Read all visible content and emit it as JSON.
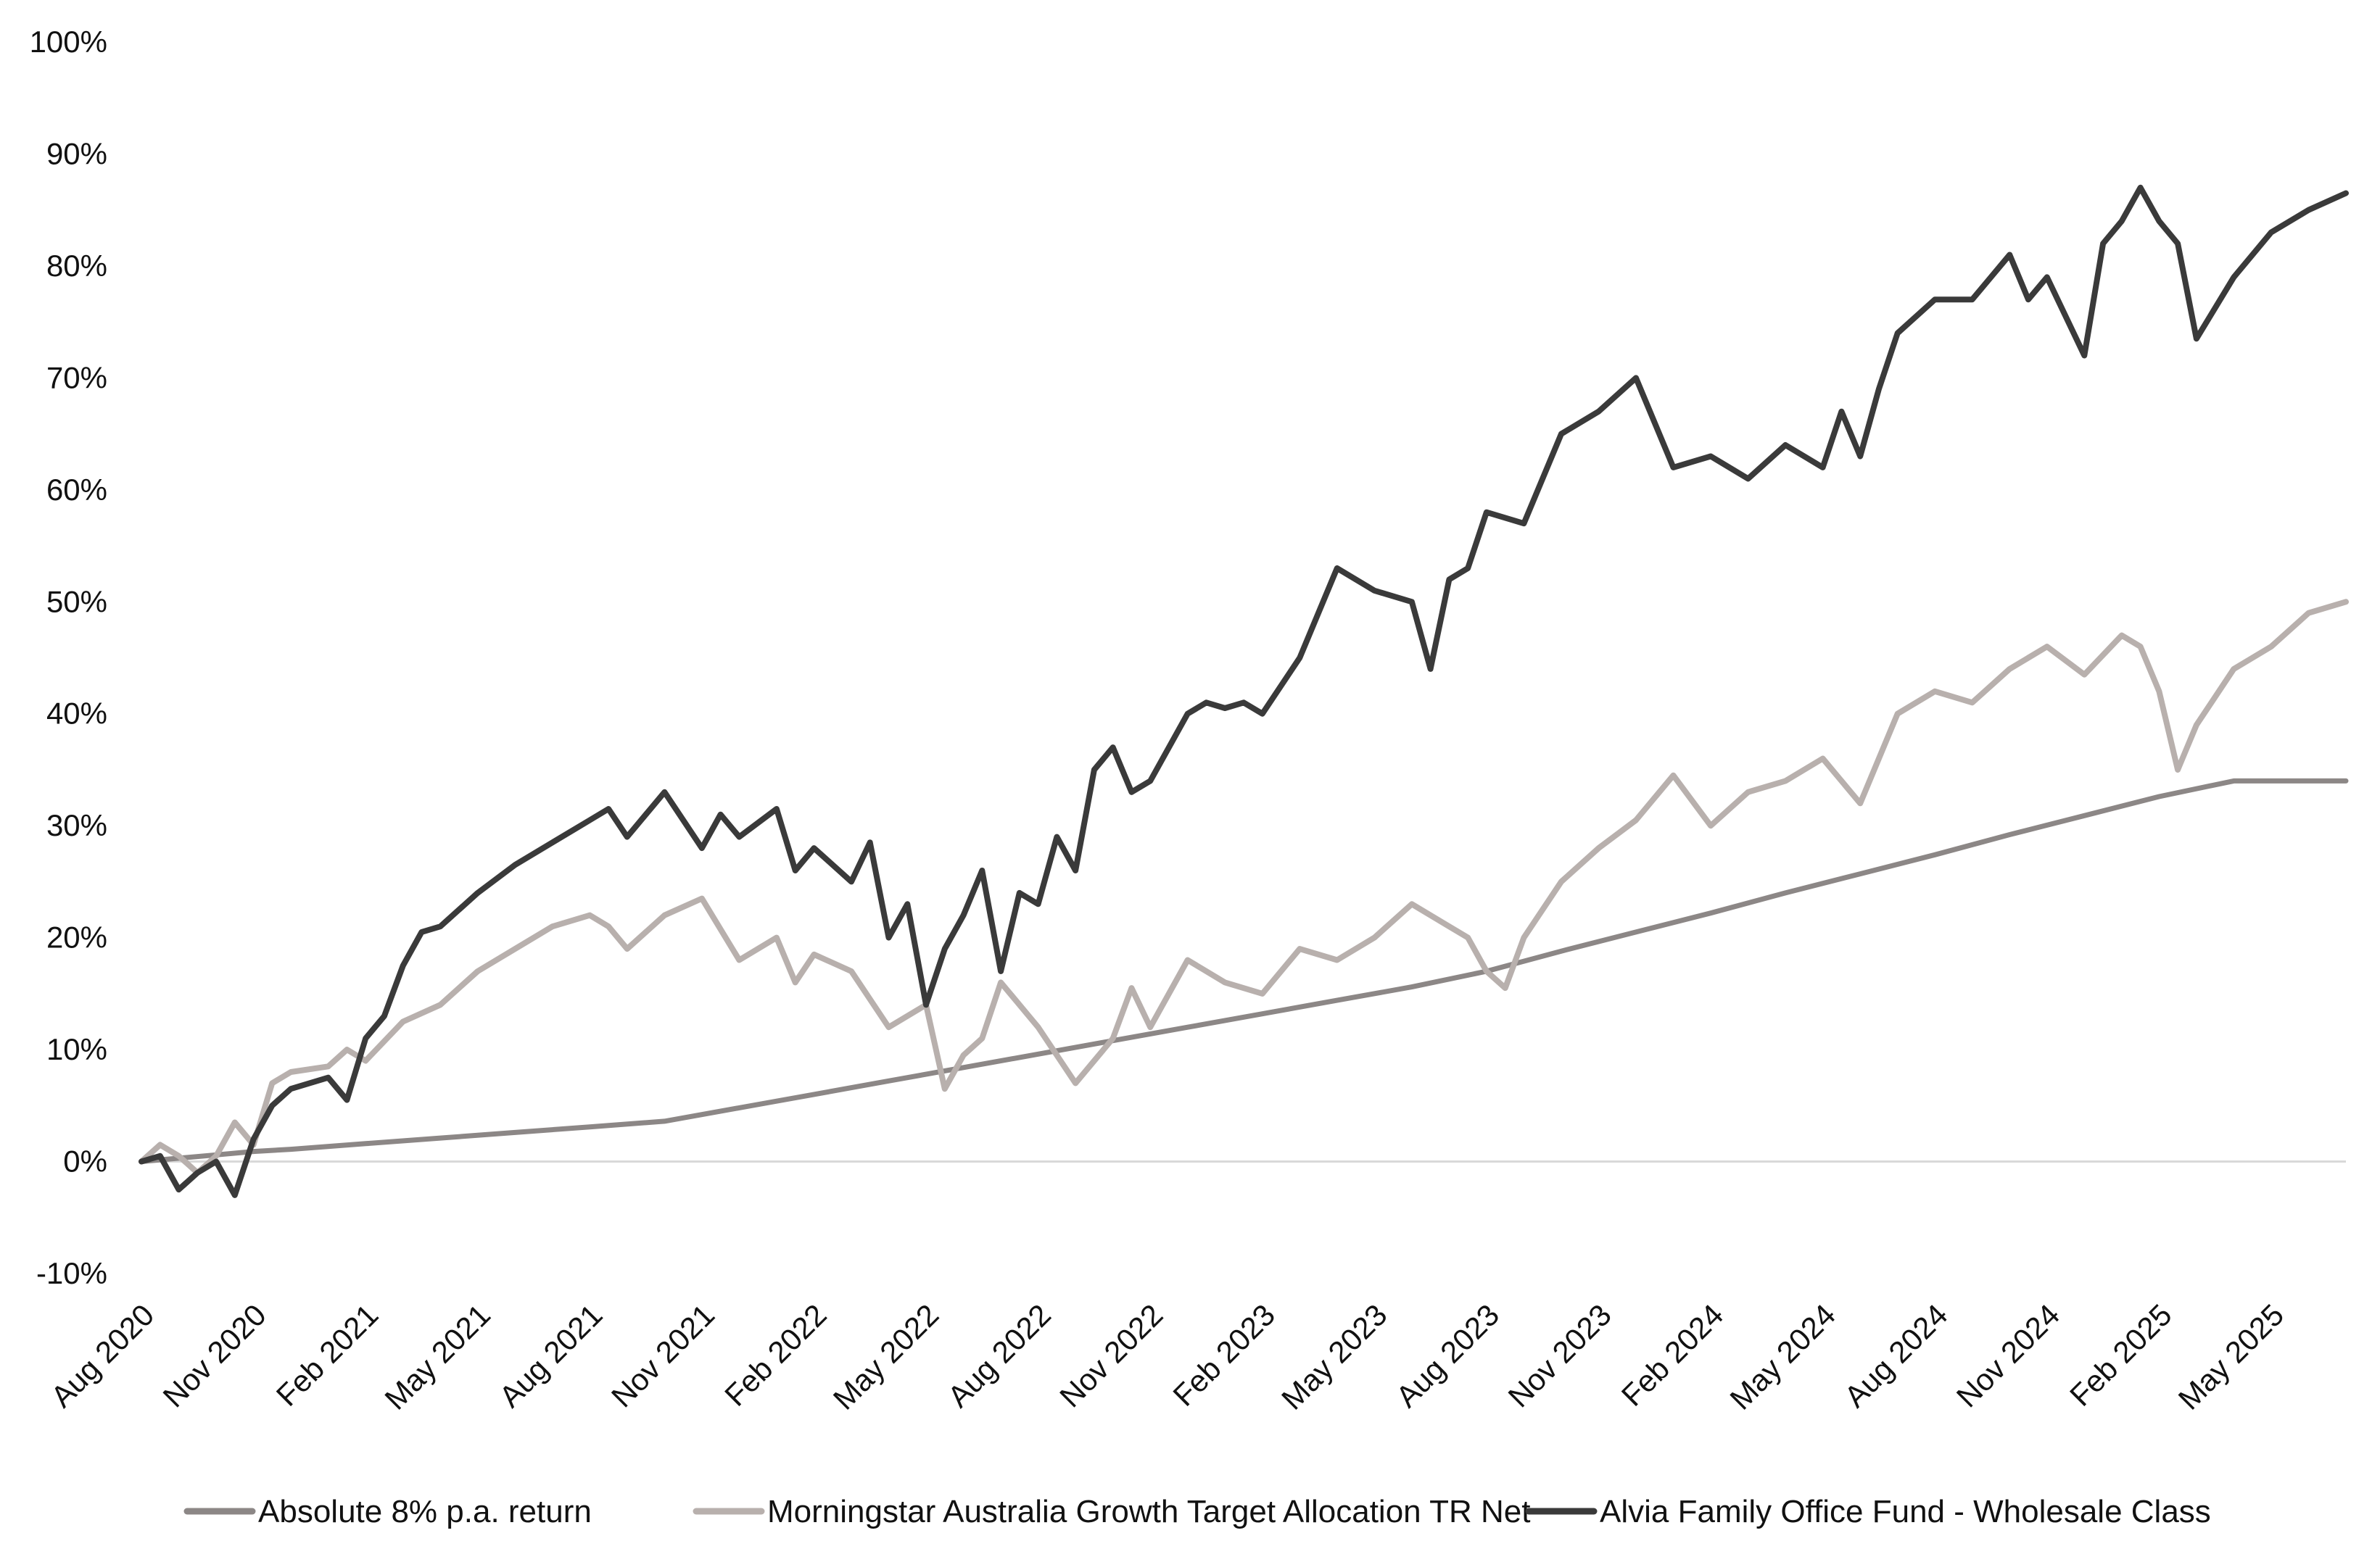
{
  "chart_data": {
    "type": "line",
    "title": "",
    "xlabel": "",
    "ylabel": "",
    "ylim": [
      -10,
      100
    ],
    "yticks": [
      "-10%",
      "0%",
      "10%",
      "20%",
      "30%",
      "40%",
      "50%",
      "60%",
      "70%",
      "80%",
      "90%",
      "100%"
    ],
    "ytick_values": [
      -10,
      0,
      10,
      20,
      30,
      40,
      50,
      60,
      70,
      80,
      90,
      100
    ],
    "xticks": [
      "Aug 2020",
      "Nov 2020",
      "Feb 2021",
      "May 2021",
      "Aug 2021",
      "Nov 2021",
      "Feb 2022",
      "May 2022",
      "Aug 2022",
      "Nov 2022",
      "Feb 2023",
      "May 2023",
      "Aug 2023",
      "Nov 2023",
      "Feb 2024",
      "May 2024",
      "Aug 2024",
      "Nov 2024",
      "Feb 2025",
      "May 2025"
    ],
    "x_unit": "month index from Aug 2020",
    "xlim": [
      0,
      59
    ],
    "zero_line": true,
    "grid": false,
    "legend_position": "bottom",
    "series": [
      {
        "name": "Absolute 8% p.a. return",
        "color": "#8c8786",
        "x": [
          0,
          1,
          2,
          3,
          4,
          6,
          8,
          10,
          12,
          14,
          16,
          18,
          20,
          22,
          24,
          26,
          28,
          30,
          32,
          34,
          36,
          38,
          40,
          42,
          44,
          46,
          48,
          50,
          52,
          54,
          56,
          58,
          59
        ],
        "values": [
          0,
          0.3,
          0.6,
          0.9,
          1.1,
          1.6,
          2.1,
          2.6,
          3.1,
          3.6,
          4.8,
          6.0,
          7.2,
          8.4,
          9.6,
          10.8,
          12.0,
          13.2,
          14.4,
          15.6,
          17.0,
          18.8,
          20.5,
          22.2,
          24.0,
          25.7,
          27.4,
          29.2,
          30.9,
          32.6,
          34.0,
          34.0,
          34.0
        ]
      },
      {
        "name": "Morningstar Australia Growth Target Allocation TR Net",
        "color": "#b8b0ad",
        "x": [
          0,
          0.5,
          1,
          1.5,
          2,
          2.5,
          3,
          3.5,
          4,
          5,
          5.5,
          6,
          7,
          8,
          9,
          10,
          11,
          12,
          12.5,
          13,
          14,
          15,
          16,
          17,
          17.5,
          18,
          19,
          20,
          21,
          21.5,
          22,
          22.5,
          23,
          24,
          25,
          25.5,
          26,
          26.5,
          27,
          28,
          29,
          30,
          31,
          32,
          33,
          34,
          35,
          35.5,
          36,
          36.5,
          37,
          38,
          39,
          40,
          41,
          42,
          43,
          44,
          45,
          46,
          47,
          48,
          49,
          50,
          51,
          52,
          53,
          53.5,
          54,
          54.5,
          55,
          56,
          57,
          58,
          59
        ],
        "values": [
          0,
          1.5,
          0.5,
          -1.0,
          0.5,
          3.5,
          1.5,
          7.0,
          8.0,
          8.5,
          10.0,
          9.0,
          12.5,
          14.0,
          17.0,
          19.0,
          21.0,
          22.0,
          21.0,
          19.0,
          22.0,
          23.5,
          18.0,
          20.0,
          16.0,
          18.5,
          17.0,
          12.0,
          14.0,
          6.5,
          9.5,
          11.0,
          16.0,
          12.0,
          7.0,
          9.0,
          11.0,
          15.5,
          12.0,
          18.0,
          16.0,
          15.0,
          19.0,
          18.0,
          20.0,
          23.0,
          21.0,
          20.0,
          17.0,
          15.5,
          20.0,
          25.0,
          28.0,
          30.5,
          34.5,
          30.0,
          33.0,
          34.0,
          36.0,
          32.0,
          40.0,
          42.0,
          41.0,
          44.0,
          46.0,
          43.5,
          47.0,
          46.0,
          42.0,
          35.0,
          39.0,
          44.0,
          46.0,
          49.0,
          50.0
        ]
      },
      {
        "name": "Alvia Family Office Fund - Wholesale Class",
        "color": "#3a3a3a",
        "x": [
          0,
          0.5,
          1,
          1.5,
          2,
          2.5,
          3,
          3.5,
          4,
          5,
          5.5,
          6,
          6.5,
          7,
          7.5,
          8,
          9,
          10,
          11,
          12,
          12.5,
          13,
          14,
          15,
          15.5,
          16,
          17,
          17.5,
          18,
          19,
          19.5,
          20,
          20.5,
          21,
          21.5,
          22,
          22.5,
          23,
          23.5,
          24,
          24.5,
          25,
          25.5,
          26,
          26.5,
          27,
          28,
          28.5,
          29,
          29.5,
          30,
          31,
          32,
          33,
          34,
          34.5,
          35,
          35.5,
          36,
          37,
          38,
          39,
          40,
          41,
          42,
          43,
          44,
          45,
          45.5,
          46,
          46.5,
          47,
          48,
          49,
          50,
          50.5,
          51,
          52,
          52.5,
          53,
          53.5,
          54,
          54.5,
          55,
          56,
          57,
          58,
          59
        ],
        "values": [
          0,
          0.5,
          -2.5,
          -1.0,
          0.0,
          -3.0,
          2.0,
          5.0,
          6.5,
          7.5,
          5.5,
          11.0,
          13.0,
          17.5,
          20.5,
          21.0,
          24.0,
          26.5,
          28.5,
          30.5,
          31.5,
          29.0,
          33.0,
          28.0,
          31.0,
          29.0,
          31.5,
          26.0,
          28.0,
          25.0,
          28.5,
          20.0,
          23.0,
          14.0,
          19.0,
          22.0,
          26.0,
          17.0,
          24.0,
          23.0,
          29.0,
          26.0,
          35.0,
          37.0,
          33.0,
          34.0,
          40.0,
          41.0,
          40.5,
          41.0,
          40.0,
          45.0,
          53.0,
          51.0,
          50.0,
          44.0,
          52.0,
          53.0,
          58.0,
          57.0,
          65.0,
          67.0,
          70.0,
          62.0,
          63.0,
          61.0,
          64.0,
          62.0,
          67.0,
          63.0,
          69.0,
          74.0,
          77.0,
          77.0,
          81.0,
          77.0,
          79.0,
          72.0,
          82.0,
          84.0,
          87.0,
          84.0,
          82.0,
          73.5,
          79.0,
          83.0,
          85.0,
          86.5
        ]
      }
    ]
  }
}
